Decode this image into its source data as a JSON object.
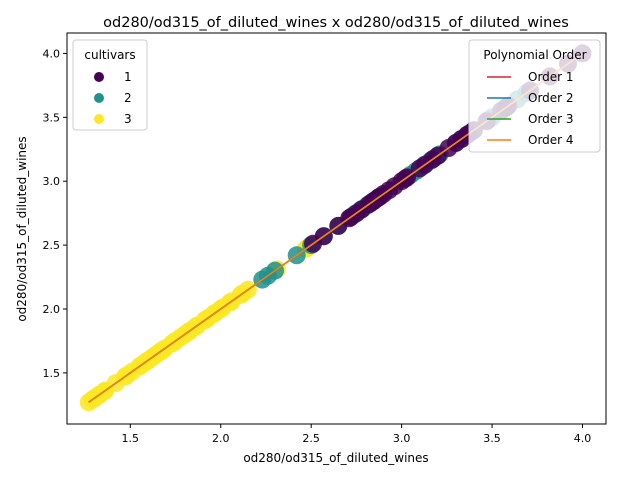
{
  "chart_data": {
    "type": "scatter",
    "title": "od280/od315_of_diluted_wines x od280/od315_of_diluted_wines",
    "xlabel": "od280/od315_of_diluted_wines",
    "ylabel": "od280/od315_of_diluted_wines",
    "xlim": [
      1.15,
      4.13
    ],
    "ylim": [
      1.1,
      4.16
    ],
    "xticks": [
      1.5,
      2.0,
      2.5,
      3.0,
      3.5,
      4.0
    ],
    "xtick_labels": [
      "1.5",
      "2.0",
      "2.5",
      "3.0",
      "3.5",
      "4.0"
    ],
    "yticks": [
      1.5,
      2.0,
      2.5,
      3.0,
      3.5,
      4.0
    ],
    "ytick_labels": [
      "1.5",
      "2.0",
      "2.5",
      "3.0",
      "3.5",
      "4.0"
    ],
    "grid": false,
    "legend_cultivars": {
      "title": "cultivars",
      "placement": "top-left",
      "entries": [
        {
          "label": "1",
          "color": "#440154"
        },
        {
          "label": "2",
          "color": "#21918c"
        },
        {
          "label": "3",
          "color": "#fde725"
        }
      ]
    },
    "legend_poly": {
      "title": "Polynomial Order",
      "placement": "top-right",
      "entries": [
        {
          "label": "Order 1",
          "color": "#d62728"
        },
        {
          "label": "Order 2",
          "color": "#1f77b4"
        },
        {
          "label": "Order 3",
          "color": "#2ca02c"
        },
        {
          "label": "Order 4",
          "color": "#ff7f0e"
        }
      ]
    },
    "series": [
      {
        "cultivar": "3",
        "color": "#fde725",
        "values": [
          1.27,
          1.29,
          1.3,
          1.31,
          1.33,
          1.33,
          1.36,
          1.36,
          1.42,
          1.47,
          1.48,
          1.51,
          1.55,
          1.56,
          1.58,
          1.59,
          1.6,
          1.62,
          1.64,
          1.66,
          1.67,
          1.68,
          1.69,
          1.73,
          1.74,
          1.75,
          1.78,
          1.8,
          1.82,
          1.83,
          1.86,
          1.87,
          1.91,
          1.92,
          1.93,
          1.96,
          1.97,
          2.0,
          2.01,
          2.05,
          2.06,
          2.11,
          2.12,
          2.15,
          2.31,
          2.47,
          2.48
        ]
      },
      {
        "cultivar": "2",
        "color": "#21918c",
        "values": [
          2.23,
          2.26,
          2.3,
          2.42,
          2.5,
          2.57,
          2.65,
          2.74,
          2.77,
          2.78,
          2.81,
          2.83,
          2.87,
          3.05,
          3.08,
          3.12,
          3.16,
          3.18,
          3.2,
          3.21,
          3.3,
          3.33,
          3.39,
          3.48,
          3.5,
          3.57,
          3.64,
          3.69
        ]
      },
      {
        "cultivar": "1",
        "color": "#440154",
        "values": [
          2.51,
          2.57,
          2.65,
          2.71,
          2.72,
          2.75,
          2.78,
          2.82,
          2.84,
          2.85,
          2.87,
          2.88,
          2.9,
          2.93,
          2.96,
          3.0,
          3.02,
          3.03,
          3.1,
          3.13,
          3.17,
          3.2,
          3.26,
          3.3,
          3.33,
          3.36,
          3.37,
          3.4,
          3.47,
          3.55,
          3.58,
          3.59,
          3.71,
          3.82,
          3.92,
          4.0
        ]
      }
    ],
    "fit_x": [
      1.27,
      4.0
    ]
  }
}
